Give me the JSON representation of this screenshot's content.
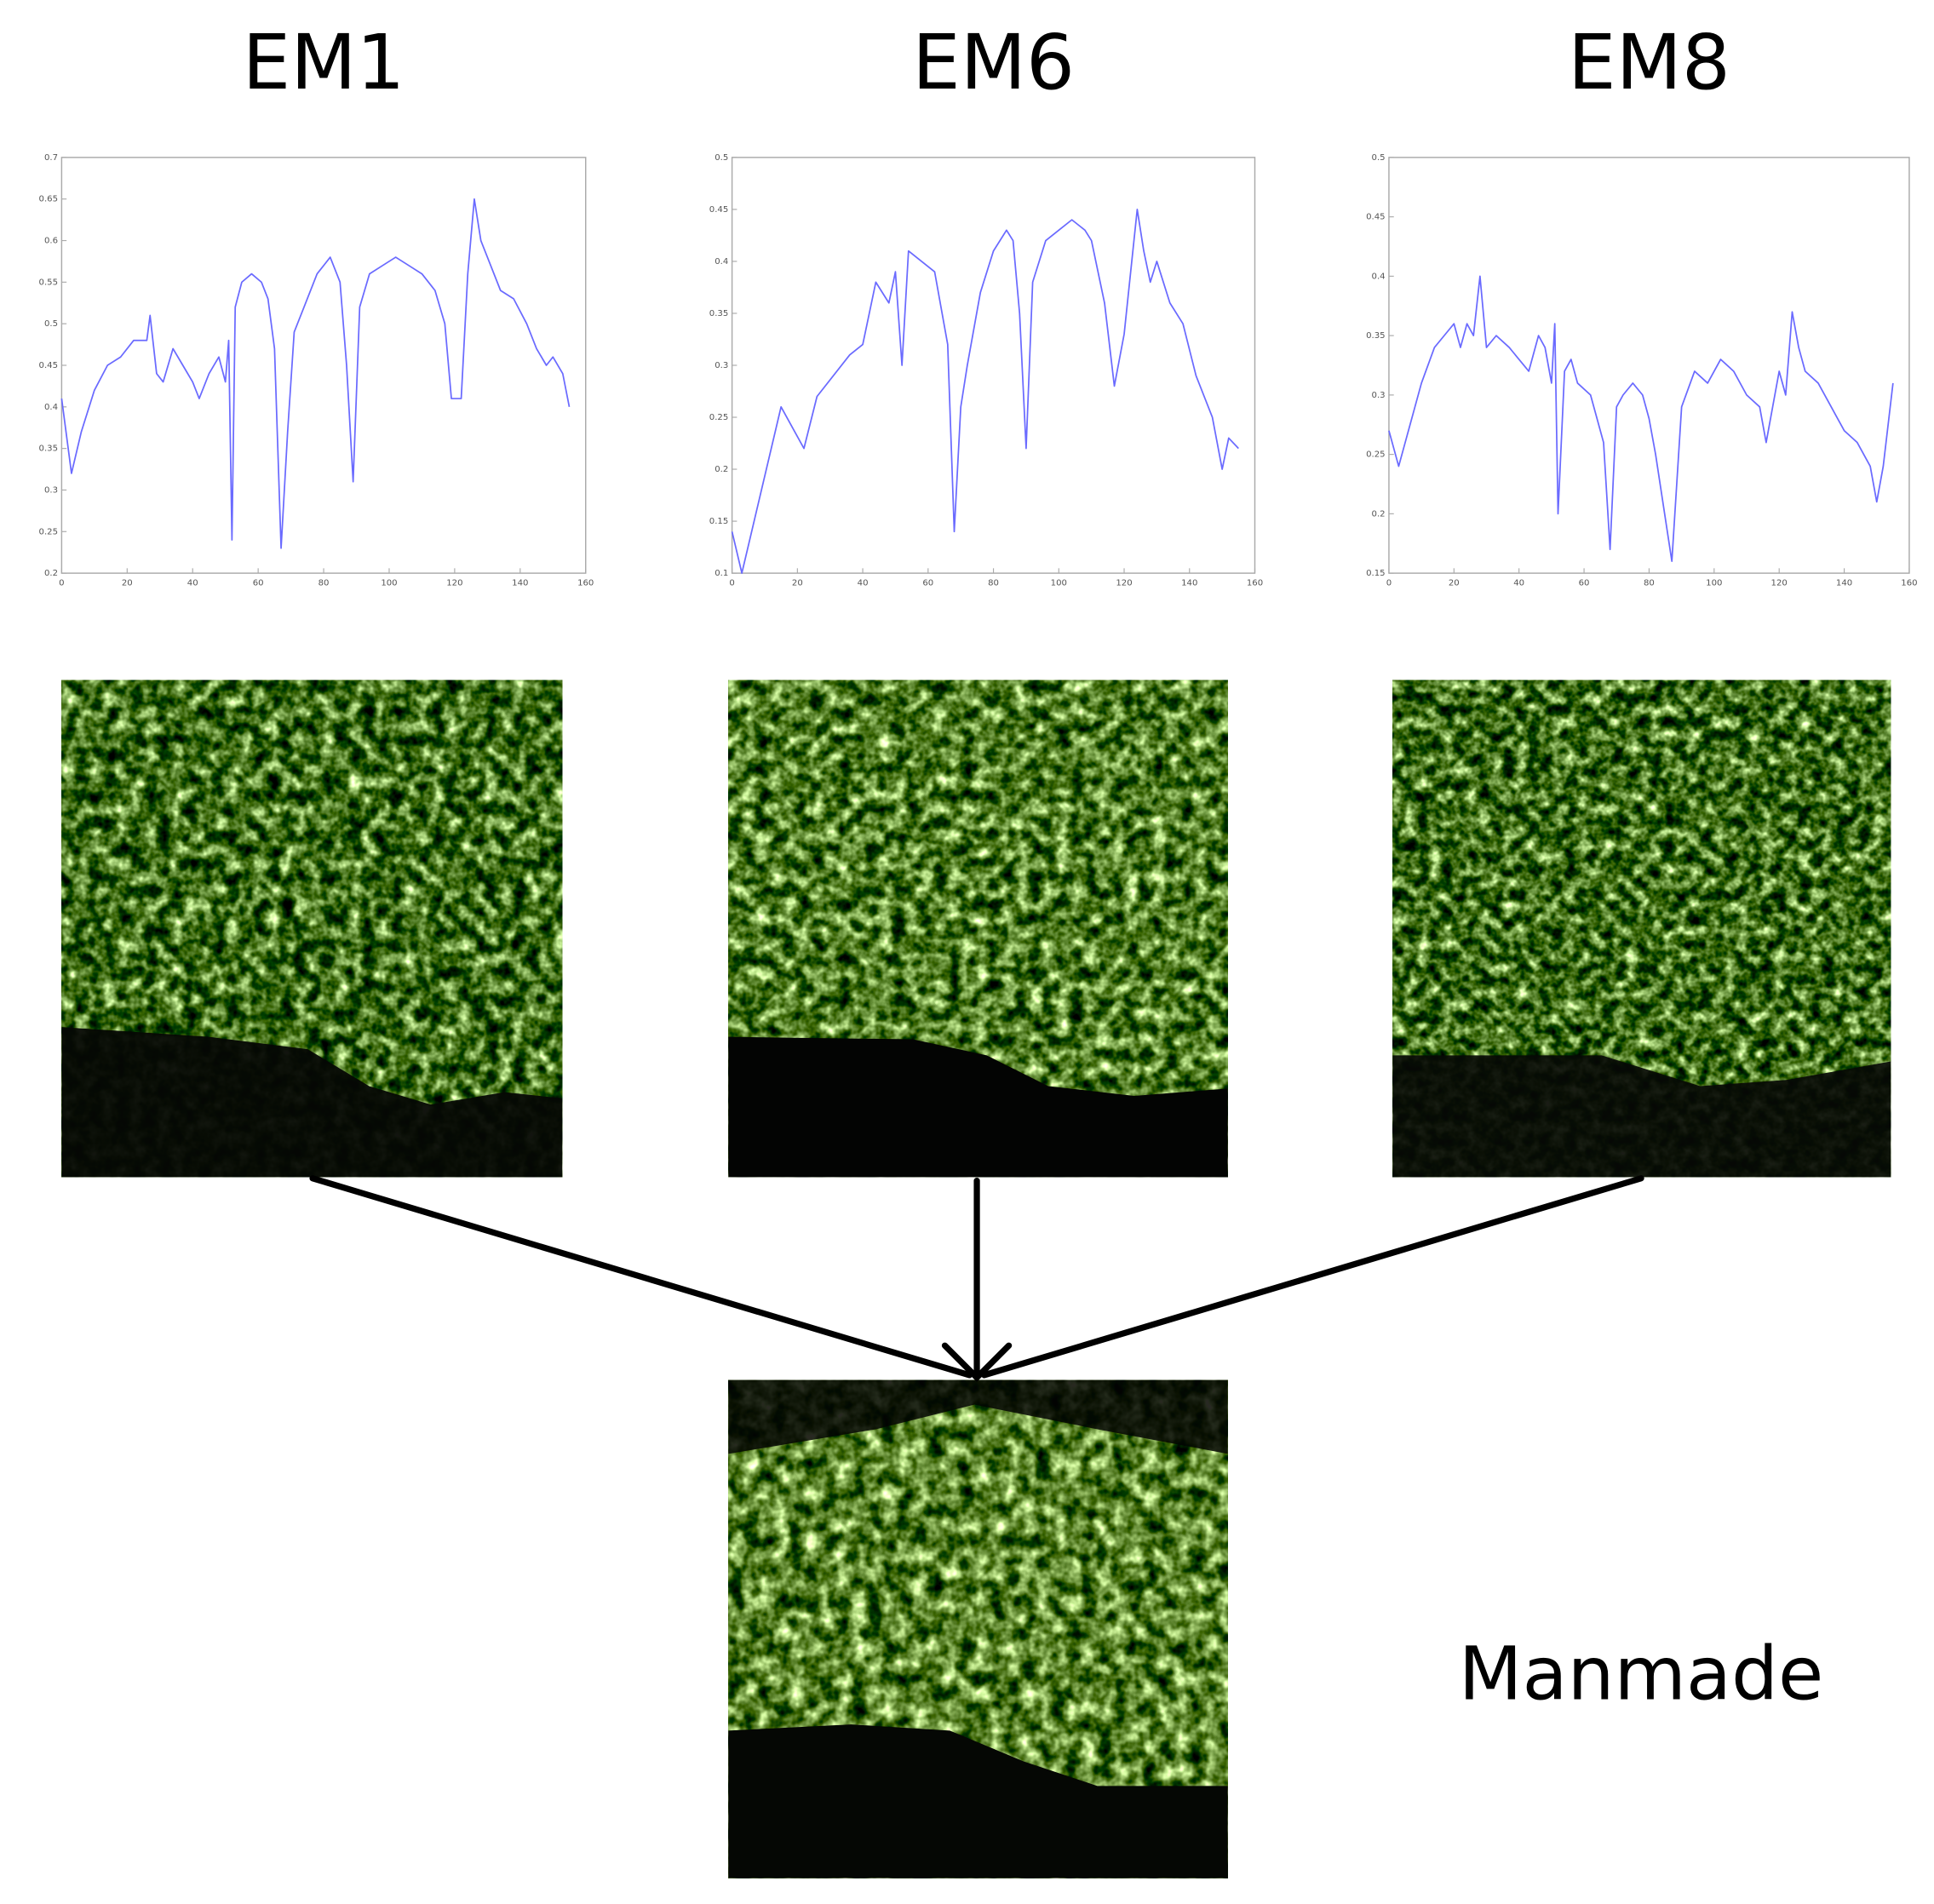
{
  "chart_data": [
    {
      "type": "line",
      "title": "EM1",
      "color": "#6a6aff",
      "x": [
        0,
        3,
        6,
        10,
        14,
        18,
        22,
        26,
        27,
        29,
        31,
        34,
        37,
        40,
        42,
        45,
        48,
        50,
        51,
        52,
        53,
        55,
        58,
        61,
        63,
        65,
        67,
        69,
        71,
        74,
        78,
        82,
        85,
        87,
        89,
        91,
        94,
        98,
        102,
        106,
        110,
        114,
        117,
        119,
        122,
        124,
        126,
        128,
        131,
        134,
        138,
        142,
        145,
        148,
        150,
        153,
        155
      ],
      "values": [
        0.41,
        0.32,
        0.37,
        0.42,
        0.45,
        0.46,
        0.48,
        0.48,
        0.51,
        0.44,
        0.43,
        0.47,
        0.45,
        0.43,
        0.41,
        0.44,
        0.46,
        0.43,
        0.48,
        0.24,
        0.52,
        0.55,
        0.56,
        0.55,
        0.53,
        0.47,
        0.23,
        0.37,
        0.49,
        0.52,
        0.56,
        0.58,
        0.55,
        0.45,
        0.31,
        0.52,
        0.56,
        0.57,
        0.58,
        0.57,
        0.56,
        0.54,
        0.5,
        0.41,
        0.41,
        0.56,
        0.65,
        0.6,
        0.57,
        0.54,
        0.53,
        0.5,
        0.47,
        0.45,
        0.46,
        0.44,
        0.4
      ],
      "xlim": [
        0,
        160
      ],
      "xticks": [
        0,
        20,
        40,
        60,
        80,
        100,
        120,
        140,
        160
      ],
      "ylim": [
        0.2,
        0.7
      ],
      "yticks": [
        0.2,
        0.25,
        0.3,
        0.35,
        0.4,
        0.45,
        0.5,
        0.55,
        0.6,
        0.65,
        0.7
      ]
    },
    {
      "type": "line",
      "title": "EM6",
      "color": "#6a6aff",
      "x": [
        0,
        3,
        15,
        22,
        26,
        36,
        40,
        44,
        48,
        50,
        52,
        54,
        58,
        62,
        66,
        68,
        70,
        72,
        76,
        80,
        84,
        86,
        88,
        90,
        92,
        96,
        100,
        104,
        108,
        110,
        114,
        117,
        120,
        124,
        126,
        128,
        130,
        134,
        138,
        142,
        147,
        150,
        152,
        155
      ],
      "values": [
        0.14,
        0.1,
        0.26,
        0.22,
        0.27,
        0.31,
        0.32,
        0.38,
        0.36,
        0.39,
        0.3,
        0.41,
        0.4,
        0.39,
        0.32,
        0.14,
        0.26,
        0.3,
        0.37,
        0.41,
        0.43,
        0.42,
        0.35,
        0.22,
        0.38,
        0.42,
        0.43,
        0.44,
        0.43,
        0.42,
        0.36,
        0.28,
        0.33,
        0.45,
        0.41,
        0.38,
        0.4,
        0.36,
        0.34,
        0.29,
        0.25,
        0.2,
        0.23,
        0.22
      ],
      "xlim": [
        0,
        160
      ],
      "xticks": [
        0,
        20,
        40,
        60,
        80,
        100,
        120,
        140,
        160
      ],
      "ylim": [
        0.1,
        0.5
      ],
      "yticks": [
        0.1,
        0.15,
        0.2,
        0.25,
        0.3,
        0.35,
        0.4,
        0.45,
        0.5
      ]
    },
    {
      "type": "line",
      "title": "EM8",
      "color": "#6a6aff",
      "x": [
        0,
        3,
        6,
        10,
        14,
        17,
        20,
        22,
        24,
        26,
        28,
        30,
        33,
        37,
        40,
        43,
        46,
        48,
        50,
        51,
        52,
        54,
        56,
        58,
        62,
        64,
        66,
        68,
        70,
        72,
        75,
        78,
        80,
        82,
        87,
        90,
        94,
        98,
        102,
        106,
        110,
        114,
        116,
        118,
        120,
        122,
        124,
        126,
        128,
        132,
        136,
        140,
        144,
        148,
        150,
        152,
        155
      ],
      "values": [
        0.27,
        0.24,
        0.27,
        0.31,
        0.34,
        0.35,
        0.36,
        0.34,
        0.36,
        0.35,
        0.4,
        0.34,
        0.35,
        0.34,
        0.33,
        0.32,
        0.35,
        0.34,
        0.31,
        0.36,
        0.2,
        0.32,
        0.33,
        0.31,
        0.3,
        0.28,
        0.26,
        0.17,
        0.29,
        0.3,
        0.31,
        0.3,
        0.28,
        0.25,
        0.16,
        0.29,
        0.32,
        0.31,
        0.33,
        0.32,
        0.3,
        0.29,
        0.26,
        0.29,
        0.32,
        0.3,
        0.37,
        0.34,
        0.32,
        0.31,
        0.29,
        0.27,
        0.26,
        0.24,
        0.21,
        0.24,
        0.31
      ],
      "xlim": [
        0,
        160
      ],
      "xticks": [
        0,
        20,
        40,
        60,
        80,
        100,
        120,
        140,
        160
      ],
      "ylim": [
        0.15,
        0.5
      ],
      "yticks": [
        0.15,
        0.2,
        0.25,
        0.3,
        0.35,
        0.4,
        0.45,
        0.5
      ]
    }
  ],
  "result_label": "Manmade"
}
